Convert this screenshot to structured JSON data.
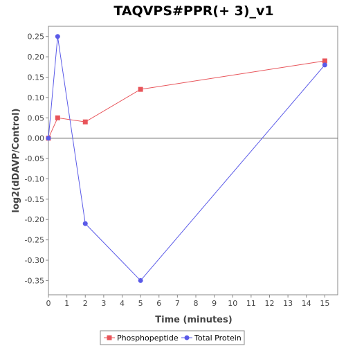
{
  "chart_data": {
    "type": "line",
    "title": "TAQVPS#PPR(+ 3)_v1",
    "xlabel": "Time (minutes)",
    "ylabel": "log2(dDAVP/Control)",
    "xlim": [
      0,
      15.7
    ],
    "ylim": [
      -0.385,
      0.275
    ],
    "x_ticks": [
      0,
      1,
      2,
      3,
      4,
      5,
      6,
      7,
      8,
      9,
      10,
      11,
      12,
      13,
      14,
      15
    ],
    "x_tick_labels": [
      "0",
      "1",
      "2",
      "3",
      "4",
      "5",
      "6",
      "7",
      "8",
      "9",
      "10",
      "11",
      "12",
      "13",
      "14",
      "15"
    ],
    "y_ticks": [
      0.25,
      0.2,
      0.15,
      0.1,
      0.05,
      0,
      -0.05,
      -0.1,
      -0.15,
      -0.2,
      -0.25,
      -0.3,
      -0.35
    ],
    "y_tick_labels": [
      "0.25",
      "0.20",
      "0.15",
      "0.10",
      "0.05",
      "0.00",
      "-0.05",
      "-0.10",
      "-0.15",
      "-0.20",
      "-0.25",
      "-0.30",
      "-0.35"
    ],
    "zero_line": true,
    "grid": false,
    "legend_position": "bottom",
    "series": [
      {
        "name": "Phosphopeptide",
        "color": "#e8545a",
        "marker": "square",
        "x": [
          0,
          0.5,
          2,
          5,
          15
        ],
        "y": [
          0.0,
          0.05,
          0.04,
          0.12,
          0.19
        ]
      },
      {
        "name": "Total Protein",
        "color": "#5a5ae8",
        "marker": "circle",
        "x": [
          0,
          0.5,
          2,
          5,
          15
        ],
        "y": [
          0.0,
          0.25,
          -0.21,
          -0.35,
          0.18
        ]
      }
    ]
  }
}
